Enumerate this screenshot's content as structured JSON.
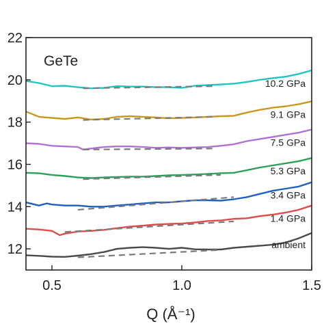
{
  "chart_data": {
    "type": "line",
    "title": "GeTe",
    "xlabel": "Q (Å⁻¹)",
    "ylabel": "",
    "xlim": [
      0.4,
      1.5
    ],
    "ylim": [
      11,
      22
    ],
    "xticks": [
      0.5,
      1.0,
      1.5
    ],
    "xtick_labels": [
      "0.5",
      "1.0",
      "1.5"
    ],
    "yticks": [
      12,
      14,
      16,
      18,
      20,
      22
    ],
    "ytick_labels": [
      "12",
      "14",
      "16",
      "18",
      "20",
      "22"
    ],
    "grid": false,
    "series": [
      {
        "name": "ambient",
        "color": "#4a4a4a",
        "x": [
          0.4,
          0.45,
          0.5,
          0.55,
          0.6,
          0.65,
          0.7,
          0.75,
          0.8,
          0.85,
          0.9,
          0.95,
          1.0,
          1.05,
          1.1,
          1.15,
          1.2,
          1.25,
          1.3,
          1.35,
          1.4,
          1.45,
          1.5
        ],
        "y": [
          11.7,
          11.67,
          11.63,
          11.62,
          11.68,
          11.75,
          11.85,
          12.0,
          12.05,
          12.08,
          12.05,
          12.0,
          12.05,
          11.98,
          11.97,
          11.97,
          12.05,
          12.1,
          12.15,
          12.2,
          12.3,
          12.5,
          12.75
        ],
        "fit_x": [
          0.6,
          1.15
        ],
        "fit_y": [
          11.6,
          11.95
        ]
      },
      {
        "name": "1.4 GPa",
        "color": "#e24a4a",
        "x": [
          0.4,
          0.45,
          0.5,
          0.53,
          0.55,
          0.6,
          0.65,
          0.7,
          0.75,
          0.8,
          0.85,
          0.9,
          0.95,
          1.0,
          1.05,
          1.1,
          1.15,
          1.2,
          1.25,
          1.3,
          1.35,
          1.4,
          1.45,
          1.5
        ],
        "y": [
          12.95,
          12.92,
          12.85,
          12.65,
          12.72,
          12.82,
          12.85,
          12.9,
          12.98,
          13.05,
          13.1,
          13.15,
          13.18,
          13.2,
          13.25,
          13.32,
          13.35,
          13.42,
          13.45,
          13.55,
          13.62,
          13.72,
          13.85,
          14.05
        ],
        "fit_x": [
          0.55,
          1.2
        ],
        "fit_y": [
          12.8,
          13.3
        ]
      },
      {
        "name": "3.4 GPa",
        "color": "#1f5fc4",
        "x": [
          0.4,
          0.45,
          0.48,
          0.5,
          0.55,
          0.6,
          0.65,
          0.7,
          0.75,
          0.8,
          0.85,
          0.9,
          0.95,
          1.0,
          1.05,
          1.1,
          1.15,
          1.2,
          1.25,
          1.3,
          1.35,
          1.4,
          1.45,
          1.5
        ],
        "y": [
          14.2,
          14.05,
          14.15,
          14.1,
          14.05,
          14.05,
          14.0,
          14.0,
          14.05,
          14.1,
          14.15,
          14.2,
          14.2,
          14.25,
          14.3,
          14.3,
          14.28,
          14.35,
          14.45,
          14.6,
          14.75,
          14.85,
          14.95,
          15.15
        ],
        "fit_x": [
          0.6,
          1.2
        ],
        "fit_y": [
          13.85,
          14.45
        ]
      },
      {
        "name": "5.3 GPa",
        "color": "#2aa05a",
        "x": [
          0.4,
          0.45,
          0.5,
          0.55,
          0.6,
          0.65,
          0.7,
          0.75,
          0.8,
          0.85,
          0.9,
          0.95,
          1.0,
          1.05,
          1.1,
          1.15,
          1.2,
          1.25,
          1.3,
          1.35,
          1.4,
          1.45,
          1.5
        ],
        "y": [
          15.6,
          15.58,
          15.5,
          15.45,
          15.38,
          15.35,
          15.38,
          15.4,
          15.42,
          15.42,
          15.45,
          15.48,
          15.5,
          15.52,
          15.55,
          15.58,
          15.6,
          15.72,
          15.85,
          15.95,
          16.05,
          16.15,
          16.3
        ],
        "fit_x": [
          0.62,
          1.15
        ],
        "fit_y": [
          15.3,
          15.5
        ]
      },
      {
        "name": "7.5 GPa",
        "color": "#b070d6",
        "x": [
          0.4,
          0.45,
          0.5,
          0.55,
          0.6,
          0.62,
          0.65,
          0.7,
          0.75,
          0.8,
          0.85,
          0.9,
          0.95,
          1.0,
          1.05,
          1.1,
          1.15,
          1.2,
          1.25,
          1.3,
          1.35,
          1.4,
          1.45,
          1.5
        ],
        "y": [
          17.0,
          16.97,
          16.88,
          16.85,
          16.82,
          16.7,
          16.75,
          16.82,
          16.85,
          16.85,
          16.82,
          16.78,
          16.8,
          16.78,
          16.8,
          16.82,
          16.88,
          16.95,
          17.1,
          17.2,
          17.3,
          17.4,
          17.5,
          17.65
        ],
        "fit_x": [
          0.62,
          1.12
        ],
        "fit_y": [
          16.7,
          16.75
        ]
      },
      {
        "name": "9.1 GPa",
        "color": "#c9981e",
        "x": [
          0.4,
          0.45,
          0.5,
          0.55,
          0.6,
          0.65,
          0.7,
          0.75,
          0.8,
          0.85,
          0.9,
          0.95,
          1.0,
          1.05,
          1.1,
          1.15,
          1.2,
          1.25,
          1.3,
          1.35,
          1.4,
          1.45,
          1.5
        ],
        "y": [
          18.5,
          18.25,
          18.2,
          18.15,
          18.22,
          18.12,
          18.15,
          18.25,
          18.28,
          18.25,
          18.22,
          18.18,
          18.2,
          18.22,
          18.25,
          18.28,
          18.3,
          18.45,
          18.58,
          18.68,
          18.75,
          18.85,
          18.98
        ],
        "fit_x": [
          0.62,
          1.12
        ],
        "fit_y": [
          18.1,
          18.25
        ]
      },
      {
        "name": "10.2 GPa",
        "color": "#1fc4c4",
        "x": [
          0.4,
          0.45,
          0.5,
          0.55,
          0.6,
          0.65,
          0.7,
          0.75,
          0.8,
          0.85,
          0.9,
          0.95,
          1.0,
          1.05,
          1.1,
          1.15,
          1.2,
          1.25,
          1.3,
          1.35,
          1.4,
          1.45,
          1.5
        ],
        "y": [
          19.95,
          19.85,
          19.7,
          19.72,
          19.65,
          19.6,
          19.62,
          19.7,
          19.68,
          19.68,
          19.65,
          19.65,
          19.62,
          19.72,
          19.75,
          19.78,
          19.82,
          19.9,
          20.0,
          20.08,
          20.15,
          20.28,
          20.45
        ],
        "fit_x": [
          0.62,
          1.12
        ],
        "fit_y": [
          19.6,
          19.7
        ]
      }
    ]
  }
}
